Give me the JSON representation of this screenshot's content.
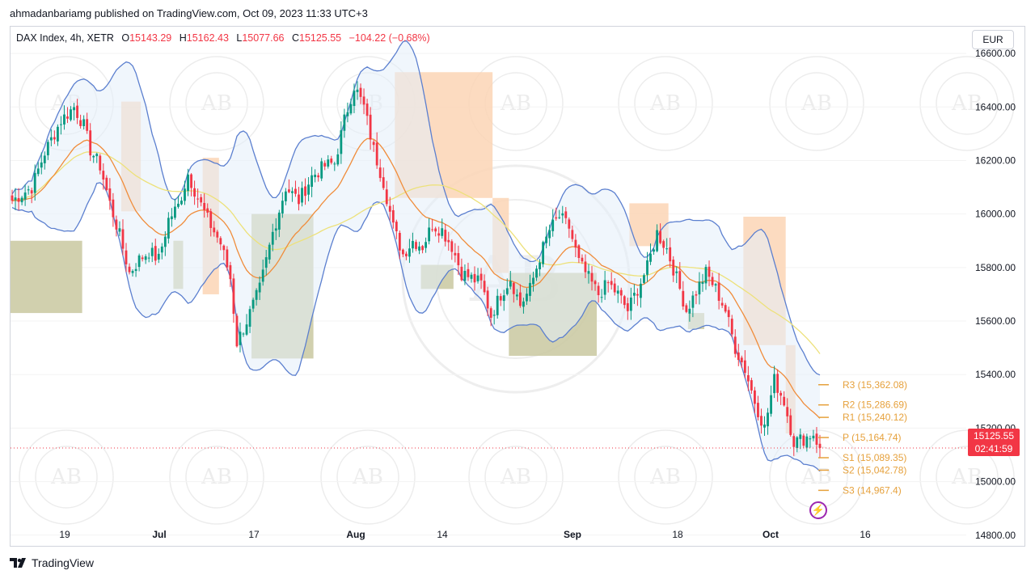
{
  "header": {
    "published": "ahmadanbariamg published on TradingView.com, Oct 09, 2023 11:33 UTC+3"
  },
  "legend": {
    "symbol": "DAX Index, 4h, XETR",
    "open_label": "O",
    "open": "15143.29",
    "high_label": "H",
    "high": "15162.43",
    "low_label": "L",
    "low": "15077.66",
    "close_label": "C",
    "close": "15125.55",
    "change": "−104.22 (−0.68%)"
  },
  "currency": "EUR",
  "price_tag": {
    "price": "15125.55",
    "countdown": "02:41:59"
  },
  "footer": {
    "brand": "TradingView"
  },
  "icons": {
    "logo": "tradingview-logo-icon",
    "alert": "lightning-bolt-icon",
    "watermark": "ab-academy-watermark"
  },
  "colors": {
    "up": "#089981",
    "down": "#f23645",
    "bollinger": "#5b7fcf",
    "ema": "#f08c3a",
    "sma": "#ede17a",
    "pivot": "#e6a13c",
    "supply_zone": "#fcd5b5",
    "demand_zone": "#c9c8a0"
  },
  "chart_data": {
    "type": "candlestick",
    "symbol": "DAX Index",
    "timeframe": "4h",
    "ylim": [
      14760,
      16700
    ],
    "y_ticks": [
      14800,
      15000,
      15200,
      15400,
      15600,
      15800,
      16000,
      16200,
      16400,
      16600
    ],
    "y_tick_labels": [
      "14800.00",
      "15000.00",
      "15200.00",
      "15400.00",
      "15600.00",
      "15800.00",
      "16000.00",
      "16200.00",
      "16400.00",
      "16600.00"
    ],
    "x_ticks": [
      {
        "label": "19",
        "bold": false
      },
      {
        "label": "Jul",
        "bold": true
      },
      {
        "label": "17",
        "bold": false
      },
      {
        "label": "Aug",
        "bold": true
      },
      {
        "label": "14",
        "bold": false
      },
      {
        "label": "Sep",
        "bold": true
      },
      {
        "label": "18",
        "bold": false
      },
      {
        "label": "Oct",
        "bold": true
      },
      {
        "label": "16",
        "bold": false
      }
    ],
    "last_price": 15125.55,
    "pivot_levels": [
      {
        "name": "R3",
        "value": 15362.08,
        "label": "R3 (15,362.08)"
      },
      {
        "name": "R2",
        "value": 15286.69,
        "label": "R2 (15,286.69)"
      },
      {
        "name": "R1",
        "value": 15240.12,
        "label": "R1 (15,240.12)"
      },
      {
        "name": "P",
        "value": 15164.74,
        "label": "P (15,164.74)"
      },
      {
        "name": "S1",
        "value": 15089.35,
        "label": "S1 (15,089.35)"
      },
      {
        "name": "S2",
        "value": 15042.78,
        "label": "S2 (15,042.78)"
      },
      {
        "name": "S3",
        "value": 14967.4,
        "label": "S3 (14,967.4)"
      }
    ],
    "close_path": [
      [
        0,
        16050
      ],
      [
        6,
        16100
      ],
      [
        10,
        16230
      ],
      [
        15,
        16350
      ],
      [
        19,
        16400
      ],
      [
        22,
        16330
      ],
      [
        24,
        16240
      ],
      [
        27,
        16180
      ],
      [
        30,
        16040
      ],
      [
        33,
        15920
      ],
      [
        36,
        15780
      ],
      [
        39,
        15830
      ],
      [
        42,
        15860
      ],
      [
        45,
        15830
      ],
      [
        48,
        15980
      ],
      [
        51,
        16030
      ],
      [
        54,
        16150
      ],
      [
        57,
        16060
      ],
      [
        60,
        15980
      ],
      [
        64,
        15890
      ],
      [
        67,
        15760
      ],
      [
        69,
        15520
      ],
      [
        72,
        15600
      ],
      [
        76,
        15720
      ],
      [
        80,
        15930
      ],
      [
        84,
        16100
      ],
      [
        88,
        16050
      ],
      [
        92,
        16140
      ],
      [
        96,
        16180
      ],
      [
        99,
        16190
      ],
      [
        102,
        16350
      ],
      [
        105,
        16480
      ],
      [
        108,
        16400
      ],
      [
        111,
        16240
      ],
      [
        114,
        16120
      ],
      [
        117,
        15950
      ],
      [
        120,
        15850
      ],
      [
        123,
        15900
      ],
      [
        126,
        15880
      ],
      [
        129,
        15960
      ],
      [
        132,
        15940
      ],
      [
        135,
        15880
      ],
      [
        138,
        15780
      ],
      [
        141,
        15760
      ],
      [
        144,
        15740
      ],
      [
        147,
        15620
      ],
      [
        150,
        15700
      ],
      [
        153,
        15760
      ],
      [
        156,
        15660
      ],
      [
        159,
        15720
      ],
      [
        162,
        15840
      ],
      [
        165,
        15940
      ],
      [
        168,
        15990
      ],
      [
        171,
        15950
      ],
      [
        174,
        15820
      ],
      [
        177,
        15760
      ],
      [
        180,
        15700
      ],
      [
        183,
        15740
      ],
      [
        186,
        15700
      ],
      [
        189,
        15640
      ],
      [
        192,
        15720
      ],
      [
        195,
        15800
      ],
      [
        198,
        15930
      ],
      [
        201,
        15870
      ],
      [
        204,
        15760
      ],
      [
        207,
        15640
      ],
      [
        210,
        15710
      ],
      [
        213,
        15780
      ],
      [
        216,
        15720
      ],
      [
        219,
        15640
      ],
      [
        222,
        15500
      ],
      [
        225,
        15420
      ],
      [
        228,
        15300
      ],
      [
        231,
        15200
      ],
      [
        234,
        15380
      ],
      [
        237,
        15300
      ],
      [
        240,
        15150
      ],
      [
        243,
        15160
      ],
      [
        246,
        15180
      ],
      [
        248,
        15125
      ]
    ],
    "indicators": [
      "Bollinger Bands (upper, lower)",
      "EMA",
      "SMA",
      "Pivot Points Standard"
    ],
    "supply_zones": [
      {
        "from_bar": 34,
        "to_bar": 40,
        "top": 16420,
        "bottom": 16010
      },
      {
        "from_bar": 59,
        "to_bar": 64,
        "top": 16210,
        "bottom": 15700
      },
      {
        "from_bar": 118,
        "to_bar": 148,
        "top": 16530,
        "bottom": 16060
      },
      {
        "from_bar": 148,
        "to_bar": 153,
        "top": 16060,
        "bottom": 15780
      },
      {
        "from_bar": 190,
        "to_bar": 202,
        "top": 16040,
        "bottom": 15880
      },
      {
        "from_bar": 225,
        "to_bar": 238,
        "top": 15990,
        "bottom": 15510
      },
      {
        "from_bar": 238,
        "to_bar": 241,
        "top": 15510,
        "bottom": 15180
      }
    ],
    "demand_zones": [
      {
        "from_bar": 0,
        "to_bar": 22,
        "top": 15900,
        "bottom": 15630
      },
      {
        "from_bar": 50,
        "to_bar": 53,
        "top": 15900,
        "bottom": 15720
      },
      {
        "from_bar": 74,
        "to_bar": 93,
        "top": 16000,
        "bottom": 15460
      },
      {
        "from_bar": 126,
        "to_bar": 136,
        "top": 15810,
        "bottom": 15720
      },
      {
        "from_bar": 153,
        "to_bar": 180,
        "top": 15780,
        "bottom": 15470
      },
      {
        "from_bar": 208,
        "to_bar": 213,
        "top": 15630,
        "bottom": 15570
      }
    ]
  }
}
